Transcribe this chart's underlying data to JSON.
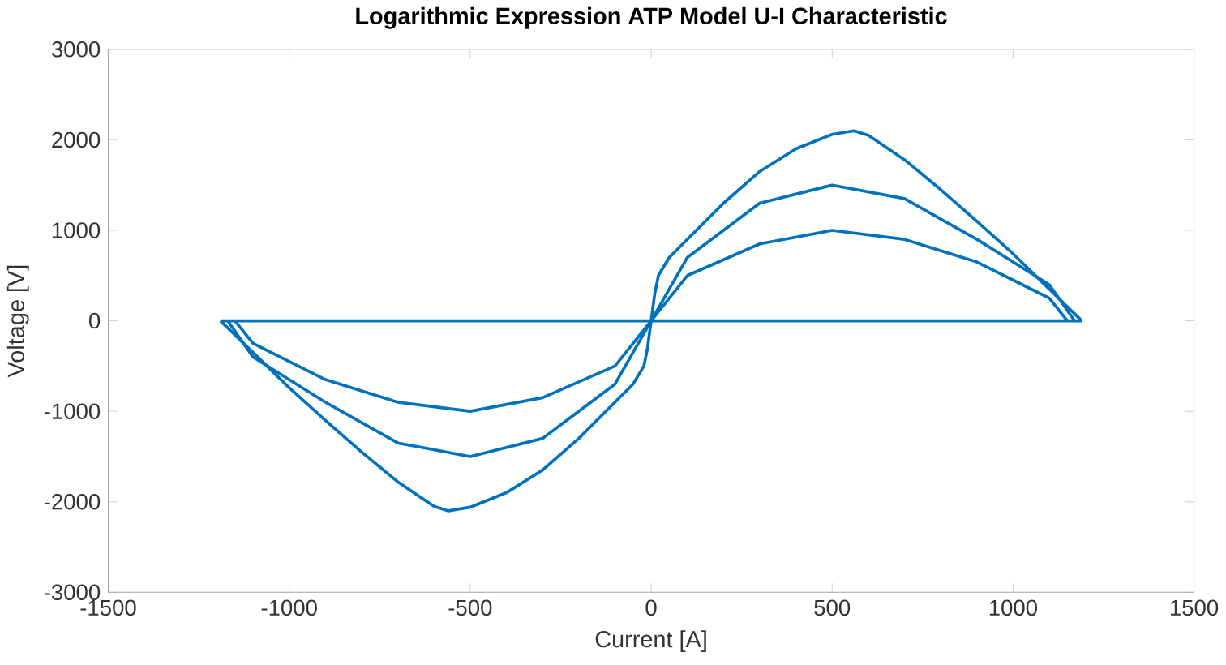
{
  "chart_data": {
    "type": "line",
    "title": "Logarithmic Expression ATP Model U-I Characteristic",
    "xlabel": "Current [A]",
    "ylabel": "Voltage [V]",
    "xlim": [
      -1500,
      1500
    ],
    "ylim": [
      -3000,
      3000
    ],
    "xticks": [
      -1500,
      -1000,
      -500,
      0,
      500,
      1000,
      1500
    ],
    "yticks": [
      -3000,
      -2000,
      -1000,
      0,
      1000,
      2000,
      3000
    ],
    "grid": false,
    "series": [
      {
        "color": "#0072bd",
        "x": [
          -1190,
          -1100,
          -1000,
          -900,
          -800,
          -700,
          -600,
          -560,
          -500,
          -400,
          -300,
          -200,
          -100,
          -50,
          -20,
          -10,
          0,
          10,
          20,
          50,
          100,
          200,
          300,
          400,
          500,
          560,
          600,
          700,
          800,
          900,
          1000,
          1100,
          1190
        ],
        "values": [
          0,
          -350,
          -740,
          -1100,
          -1450,
          -1780,
          -2050,
          -2100,
          -2060,
          -1900,
          -1650,
          -1300,
          -900,
          -700,
          -500,
          -300,
          0,
          300,
          500,
          700,
          900,
          1300,
          1650,
          1900,
          2060,
          2100,
          2050,
          1780,
          1450,
          1100,
          740,
          350,
          0
        ]
      },
      {
        "color": "#0072bd",
        "x": [
          -1170,
          -1100,
          -900,
          -700,
          -500,
          -300,
          -100,
          0,
          100,
          300,
          500,
          700,
          900,
          1100,
          1170
        ],
        "values": [
          0,
          -400,
          -900,
          -1350,
          -1500,
          -1300,
          -700,
          0,
          700,
          1300,
          1500,
          1350,
          900,
          400,
          0
        ]
      },
      {
        "color": "#0072bd",
        "x": [
          -1150,
          -1100,
          -900,
          -700,
          -500,
          -300,
          -100,
          0,
          100,
          300,
          500,
          700,
          900,
          1100,
          1150
        ],
        "values": [
          0,
          -250,
          -650,
          -900,
          -1000,
          -850,
          -500,
          0,
          500,
          850,
          1000,
          900,
          650,
          250,
          0
        ]
      },
      {
        "color": "#0072bd",
        "x": [
          -1190,
          0,
          1190
        ],
        "values": [
          0,
          0,
          0
        ]
      }
    ]
  }
}
